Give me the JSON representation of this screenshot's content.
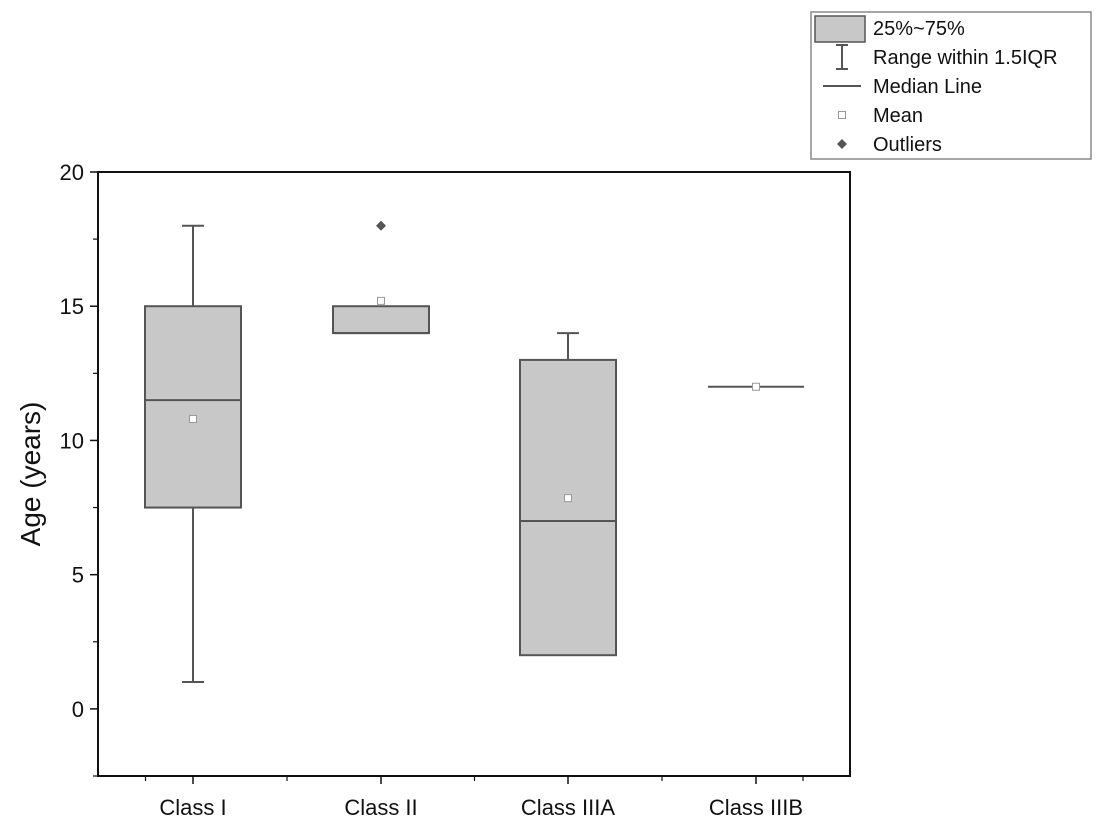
{
  "chart_data": {
    "type": "box",
    "title": "",
    "xlabel": "",
    "ylabel": "Age (years)",
    "ylim": [
      -2.5,
      20
    ],
    "yticks": [
      0,
      5,
      10,
      15,
      20
    ],
    "categories": [
      "Class I",
      "Class II",
      "Class IIIA",
      "Class IIIB"
    ],
    "boxes": [
      {
        "category": "Class I",
        "whisker_low": 1,
        "q1": 7.5,
        "median": 11.5,
        "q3": 15,
        "whisker_high": 18,
        "mean": 10.8,
        "outliers": []
      },
      {
        "category": "Class II",
        "whisker_low": 14,
        "q1": 14,
        "median": 14,
        "q3": 15,
        "whisker_high": 15,
        "mean": 15.2,
        "outliers": [
          18
        ]
      },
      {
        "category": "Class IIIA",
        "whisker_low": 2,
        "q1": 2,
        "median": 7,
        "q3": 13,
        "whisker_high": 14,
        "mean": 7.85,
        "outliers": []
      },
      {
        "category": "Class IIIB",
        "whisker_low": 12,
        "q1": 12,
        "median": 12,
        "q3": 12,
        "whisker_high": 12,
        "mean": 12,
        "outliers": []
      }
    ],
    "legend": {
      "position": "top-right",
      "entries": [
        {
          "key": "box",
          "label": "25%~75%"
        },
        {
          "key": "whisker",
          "label": "Range within 1.5IQR"
        },
        {
          "key": "median",
          "label": "Median Line"
        },
        {
          "key": "mean",
          "label": "Mean"
        },
        {
          "key": "outlier",
          "label": "Outliers"
        }
      ]
    },
    "grid": false,
    "colors": {
      "box_fill": "#c8c8c8",
      "box_stroke": "#555555",
      "axis": "#111111",
      "mean_marker": "#999999",
      "outlier_marker": "#555555"
    }
  }
}
